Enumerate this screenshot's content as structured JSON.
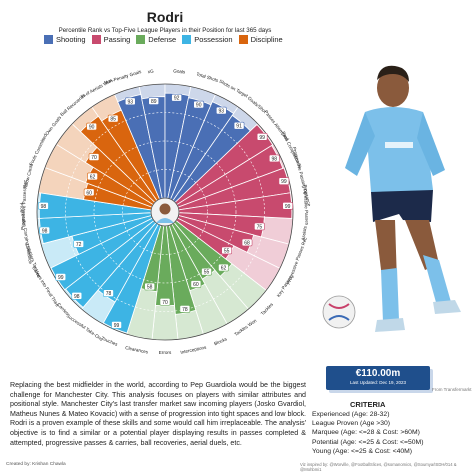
{
  "title": "Rodri",
  "subtitle": "Percentile Rank vs Top-Five League Players in their Position for last 365 days",
  "legend": [
    {
      "label": "Shooting",
      "color": "#4a6fb5"
    },
    {
      "label": "Passing",
      "color": "#c84a6e"
    },
    {
      "label": "Defense",
      "color": "#6aab5c"
    },
    {
      "label": "Possession",
      "color": "#3db4e4"
    },
    {
      "label": "Discipline",
      "color": "#d9650e"
    }
  ],
  "chart_data": {
    "type": "polar-bar",
    "title": "Rodri",
    "subtitle": "Percentile Rank vs Top-Five League Players in their Position for last 365 days",
    "rlim": [
      0,
      100
    ],
    "series": [
      {
        "category": "Non-Penalty Goals",
        "group": "Shooting",
        "value": 93
      },
      {
        "category": "xG",
        "group": "Shooting",
        "value": 89
      },
      {
        "category": "Goals",
        "group": "Shooting",
        "value": 92
      },
      {
        "category": "Total Shots",
        "group": "Shooting",
        "value": 90
      },
      {
        "category": "Shots on Target",
        "group": "Shooting",
        "value": 93
      },
      {
        "category": "Goals/Shot",
        "group": "Shooting",
        "value": 91
      },
      {
        "category": "Passes Attempted",
        "group": "Passing",
        "value": 99
      },
      {
        "category": "Pass Completion %",
        "group": "Passing",
        "value": 98
      },
      {
        "category": "Progressive Passing Distance",
        "group": "Passing",
        "value": 99
      },
      {
        "category": "Progressive Passes",
        "group": "Passing",
        "value": 99
      },
      {
        "category": "Assists",
        "group": "Passing",
        "value": 75
      },
      {
        "category": "Progressive Passes Rec",
        "group": "Passing",
        "value": 68
      },
      {
        "category": "Key Passes",
        "group": "Passing",
        "value": 55
      },
      {
        "category": "Tackles",
        "group": "Defense",
        "value": 62
      },
      {
        "category": "Tackles Won",
        "group": "Defense",
        "value": 55
      },
      {
        "category": "Blocks",
        "group": "Defense",
        "value": 60
      },
      {
        "category": "Interceptions",
        "group": "Defense",
        "value": 78
      },
      {
        "category": "Errors",
        "group": "Defense",
        "value": 70
      },
      {
        "category": "Clearances",
        "group": "Defense",
        "value": 58
      },
      {
        "category": "Touches",
        "group": "Possession",
        "value": 99
      },
      {
        "category": "Successful Take-Ons",
        "group": "Possession",
        "value": 78
      },
      {
        "category": "Carries",
        "group": "Possession",
        "value": 98
      },
      {
        "category": "Carries into Final Third",
        "group": "Possession",
        "value": 99
      },
      {
        "category": "Dribblers Tackled",
        "group": "Possession",
        "value": 72
      },
      {
        "category": "Progressive Carrying Distance",
        "group": "Possession",
        "value": 98
      },
      {
        "category": "Progressive Passes Rec",
        "group": "Possession",
        "value": 98
      },
      {
        "category": "Yellow Cards",
        "group": "Discipline",
        "value": 60
      },
      {
        "category": "Fouls Committed",
        "group": "Discipline",
        "value": 62
      },
      {
        "category": "Own Goals",
        "group": "Discipline",
        "value": 70
      },
      {
        "category": "Ball Recoveries",
        "group": "Discipline",
        "value": 90
      },
      {
        "category": "% of Aerials Won",
        "group": "Discipline",
        "value": 85
      }
    ]
  },
  "labels": [
    "Non-Penalty Goals",
    "xG",
    "Goals",
    "Total Shots",
    "Shots on Target",
    "Goals/Shot",
    "Passes Attempted",
    "Pass Completion %",
    "Progressive Passing Distance",
    "Progressive Passes",
    "Assists",
    "Progressive Passes Rec",
    "Key Passes",
    "Tackles",
    "Tackles Won",
    "Blocks",
    "Interceptions",
    "Errors",
    "Clearances",
    "Touches",
    "Successful Take-Ons",
    "Carries",
    "Carries into Final Third",
    "Dribblers Tackled",
    "Progressive Carrying Distance",
    "Progressive Passes Rec",
    "Yellow Cards",
    "Fouls Committed",
    "Own Goals",
    "Ball Recoveries",
    "% of Aerials Won"
  ],
  "market_value": "€110.00m",
  "last_updated": "Last Updated: Dec 19, 2023",
  "photo_credit": "From Transfermarkt",
  "criteria_title": "CRITERIA",
  "criteria": [
    "Experienced (Age: 28-32)",
    "League Proven (Age >30)",
    "Marquee (Age: <=28 & Cost: >60M)",
    "Potential (Age: <=25 & Cost: <=50M)",
    "Young (Age: <=25 & Cost: <40M)"
  ],
  "description": "Replacing the best midfielder in the world, according to Pep Guardiola would be the biggest challenge for Manchester City. This analysis focuses on players with similar attributes and positional style. Manchester City's last transfer market saw incoming players (Josko Gvardiol, Matheus Nunes & Mateo Kovacic) with a sense of progression into tight spaces and low block. Rodri is a proven example of these skills and some would call him irreplaceable. The analysis' objective is to find a similar or a potential player displaying results in passes completed & attempted, progressive passes & carries, ball recoveries, aerial duels, etc.",
  "footer_created": "Created by: Krishan Chawla",
  "footer_inspired": "Viz inspired by: @Worville, @FootballSlices, @somanomics, @Soumya/ISDH/014 & @Mohbmi1"
}
